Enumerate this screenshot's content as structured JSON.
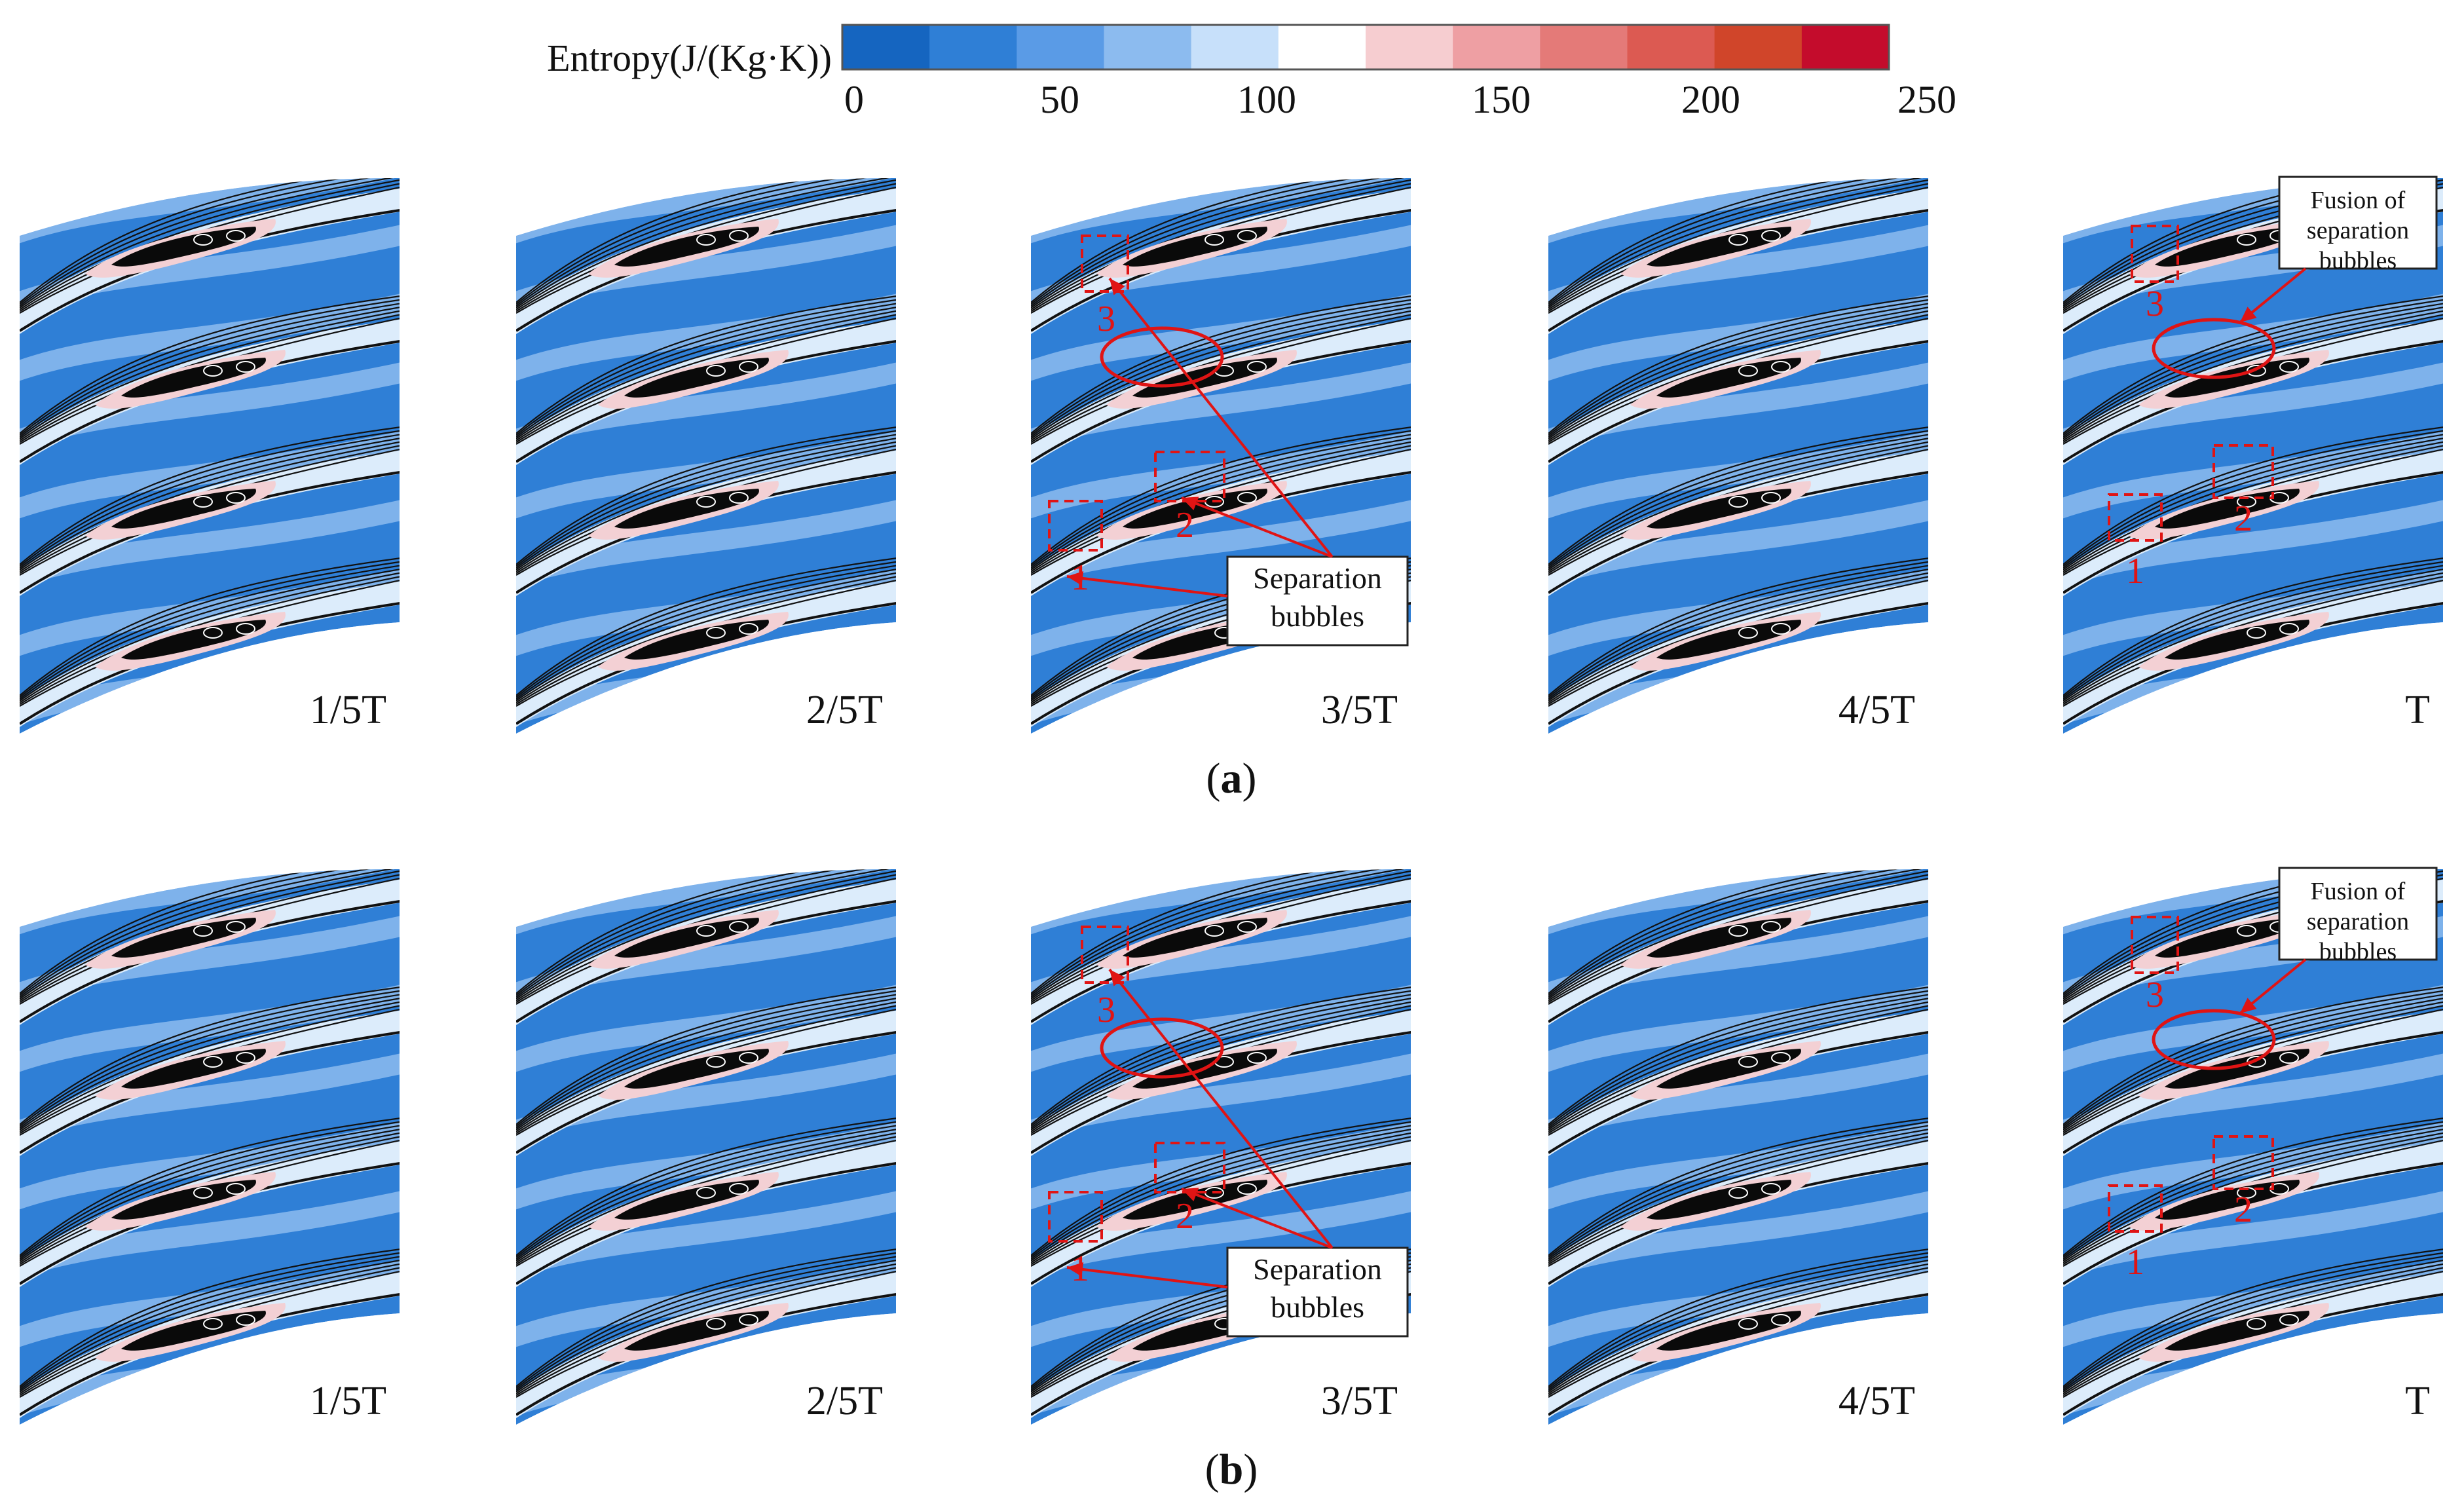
{
  "colorbar": {
    "title": "Entropy(J/(Kg·K))",
    "ticks": [
      "0",
      "50",
      "100",
      "150",
      "200",
      "250"
    ],
    "colors": [
      "#1565c0",
      "#2f7fd6",
      "#5a9be6",
      "#8cbbef",
      "#c7e0fa",
      "#ffffff",
      "#f6cdd0",
      "#ee9fa3",
      "#e47a78",
      "#dc5a52",
      "#d0452a",
      "#c40c2c"
    ]
  },
  "rows": [
    {
      "caption_open": "(",
      "caption_letter": "a",
      "caption_close": ")",
      "panels": [
        {
          "label": "1/5T"
        },
        {
          "label": "2/5T"
        },
        {
          "label": "3/5T",
          "annotated": true,
          "markers": [
            "1",
            "2",
            "3"
          ],
          "callout": [
            "Separation",
            "bubbles"
          ]
        },
        {
          "label": "4/5T"
        },
        {
          "label": "T",
          "annotated": true,
          "markers": [
            "1",
            "2",
            "3"
          ],
          "callout": [
            "Fusion of",
            "separation",
            "bubbles"
          ]
        }
      ]
    },
    {
      "caption_open": "(",
      "caption_letter": "b",
      "caption_close": ")",
      "panels": [
        {
          "label": "1/5T"
        },
        {
          "label": "2/5T"
        },
        {
          "label": "3/5T",
          "annotated": true,
          "markers": [
            "1",
            "2",
            "3"
          ],
          "callout": [
            "Separation",
            "bubbles"
          ]
        },
        {
          "label": "4/5T"
        },
        {
          "label": "T",
          "annotated": true,
          "markers": [
            "1",
            "2",
            "3"
          ],
          "callout": [
            "Fusion of",
            "separation",
            "bubbles"
          ]
        }
      ]
    }
  ],
  "palette": {
    "field_dark": "#2f7fd6",
    "field_light": "#8cbbef",
    "bubble_fill": "#0a0a0a",
    "bubble_halo": "#f3d0d4",
    "streamline": "#111111",
    "annotation": "#e01414"
  }
}
